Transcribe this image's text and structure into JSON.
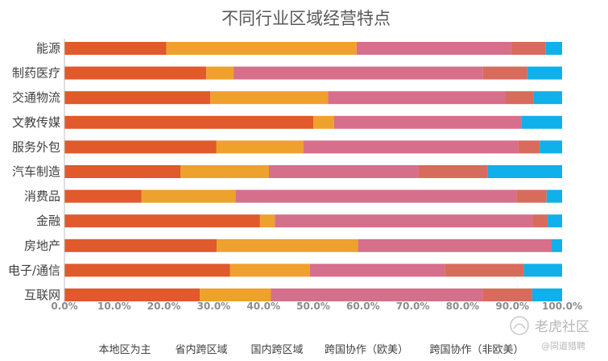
{
  "chart_data": {
    "type": "bar",
    "orientation": "horizontal",
    "stacked": true,
    "normalized": true,
    "title": "不同行业区域经营特点",
    "categories": [
      "能源",
      "制药医疗",
      "交通物流",
      "文教传媒",
      "服务外包",
      "汽车制造",
      "消费品",
      "金融",
      "房地产",
      "电子/通信",
      "互联网"
    ],
    "series": [
      {
        "name": "本地区为主",
        "color": "#e05a2b",
        "values": [
          20.5,
          28.5,
          29.3,
          50.0,
          30.5,
          23.3,
          15.5,
          39.3,
          30.6,
          33.3,
          27.2
        ]
      },
      {
        "name": "省内跨区域",
        "color": "#eea12d",
        "values": [
          38.2,
          5.5,
          23.7,
          4.2,
          17.5,
          17.8,
          18.9,
          3.0,
          28.4,
          16.0,
          14.3
        ]
      },
      {
        "name": "国内跨区域",
        "color": "#d56f8c",
        "values": [
          31.0,
          50.1,
          35.6,
          37.6,
          43.2,
          30.0,
          56.4,
          51.8,
          38.9,
          27.1,
          42.5
        ]
      },
      {
        "name": "跨国协作（欧美）",
        "color": "#d86c5c",
        "values": [
          7.0,
          8.9,
          5.6,
          0.0,
          4.3,
          13.9,
          6.1,
          3.0,
          0.0,
          15.9,
          10.0
        ]
      },
      {
        "name": "跨国协作（非欧美）",
        "color": "#10b0ea",
        "values": [
          3.3,
          7.0,
          5.8,
          8.2,
          4.5,
          15.0,
          3.1,
          2.9,
          2.1,
          7.7,
          6.0
        ]
      }
    ],
    "xlim": [
      0,
      100
    ],
    "xticks": [
      "0.0%",
      "10.0%",
      "20.0%",
      "30.0%",
      "40.0%",
      "50.0%",
      "60.0%",
      "70.0%",
      "80.0%",
      "90.0%",
      "100.0%"
    ],
    "legend_position": "bottom",
    "grid": false
  },
  "watermark": {
    "main": "老虎社区",
    "sub": "@同道猎聘"
  }
}
